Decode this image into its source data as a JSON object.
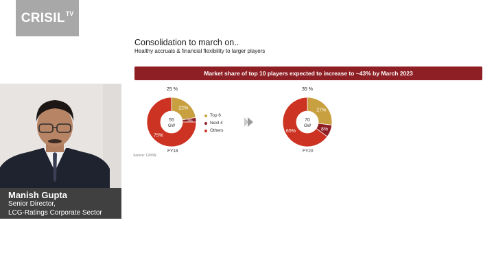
{
  "brand": {
    "logo_main": "CRISIL",
    "logo_sup": "TV"
  },
  "slide": {
    "title": "Consolidation to march on..",
    "subtitle": "Healthy accruals & financial flexibility to larger players",
    "banner": "Market share of top 10 players expected to increase to ~43% by March 2023",
    "source": "Source: CRISIL",
    "legend": [
      {
        "label": "Top 6",
        "color": "#c8a040"
      },
      {
        "label": "Next 4",
        "color": "#8e1f24"
      },
      {
        "label": "Others",
        "color": "#cc3322"
      }
    ]
  },
  "chart_data": [
    {
      "type": "pie",
      "title": "FY18",
      "center_value": "55",
      "center_unit": "GW",
      "categories": [
        "Top 6",
        "Next 4",
        "Others"
      ],
      "values": [
        22,
        3,
        75
      ],
      "labels": [
        "22%",
        "3%",
        "75%"
      ],
      "callout": "25 %"
    },
    {
      "type": "pie",
      "title": "FY20",
      "center_value": "70",
      "center_unit": "GW",
      "categories": [
        "Top 6",
        "Next 4",
        "Others"
      ],
      "values": [
        27,
        8,
        65
      ],
      "labels": [
        "27%",
        "8%",
        "65%"
      ],
      "callout": "35 %"
    }
  ],
  "presenter": {
    "name": "Manish Gupta",
    "role": "Senior Director,",
    "dept": "LCG-Ratings Corporate Sector"
  }
}
